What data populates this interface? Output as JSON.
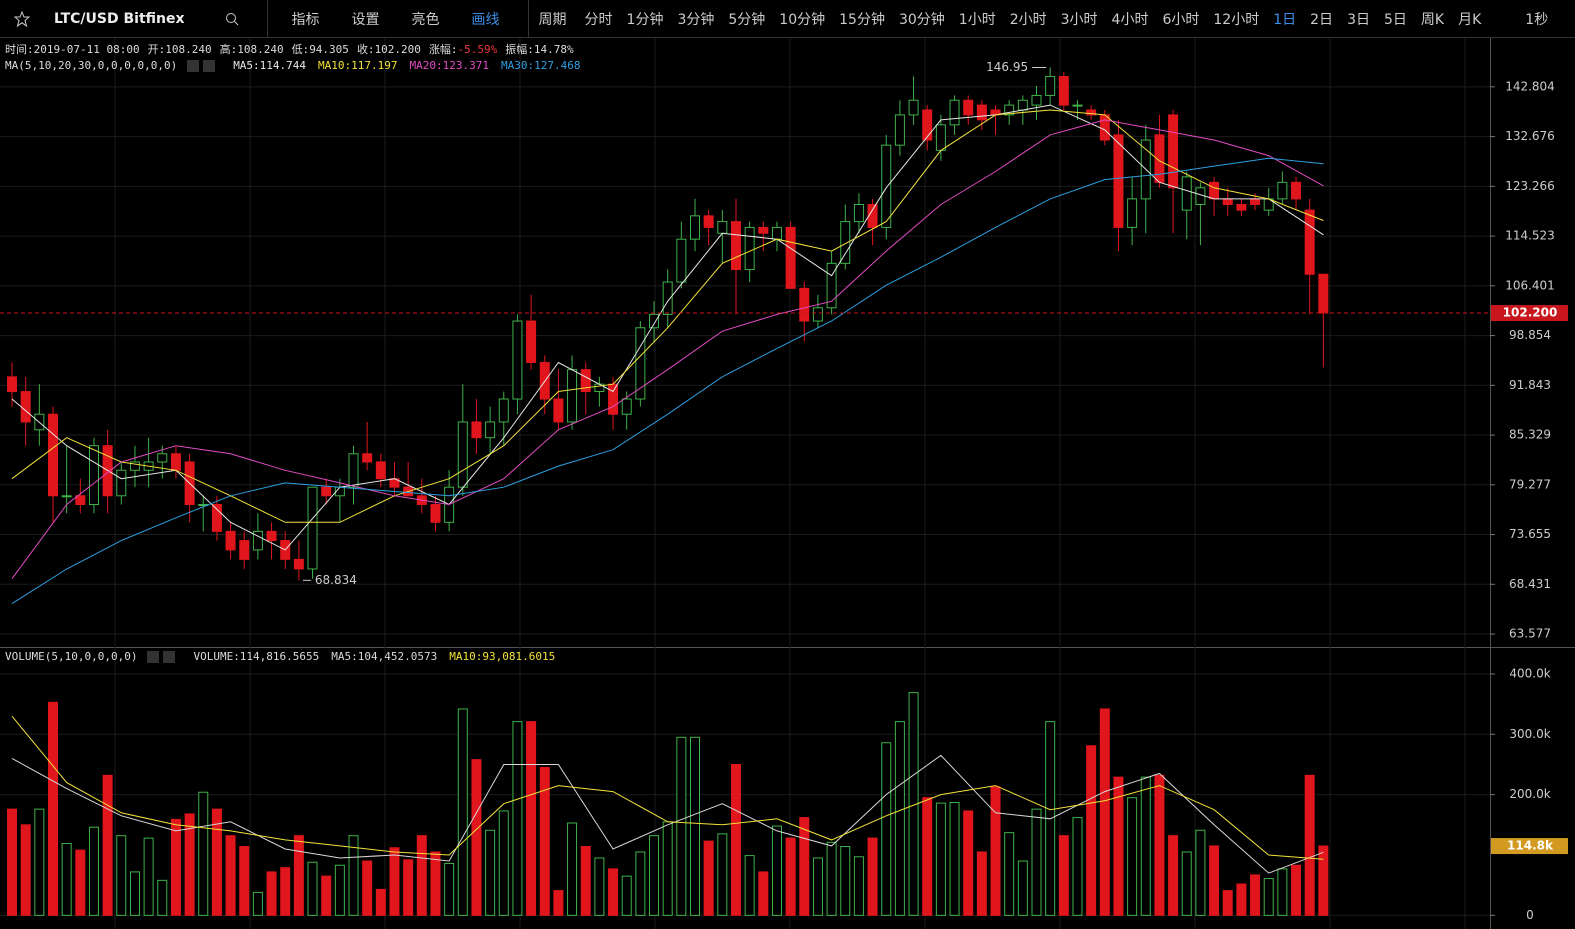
{
  "toolbar": {
    "symbol": "LTC/USD Bitfinex",
    "tools": [
      "指标",
      "设置",
      "亮色",
      "画线"
    ],
    "period_label": "周期",
    "periods": [
      "分时",
      "1分钟",
      "3分钟",
      "5分钟",
      "10分钟",
      "15分钟",
      "30分钟",
      "1小时",
      "2小时",
      "3小时",
      "4小时",
      "6小时",
      "12小时",
      "1日",
      "2日",
      "3日",
      "5日",
      "周K",
      "月K"
    ],
    "active_period": "1日",
    "interval": "1秒"
  },
  "info": [
    {
      "label": "时间:",
      "value": "2019-07-11 08:00"
    },
    {
      "label": "开:",
      "value": "108.240"
    },
    {
      "label": "高:",
      "value": "108.240"
    },
    {
      "label": "低:",
      "value": "94.305"
    },
    {
      "label": "收:",
      "value": "102.200"
    },
    {
      "label": "涨幅:",
      "value": "-5.59%",
      "color": "#e8383d"
    },
    {
      "label": "振幅:",
      "value": "14.78%"
    }
  ],
  "chart_data": [
    {
      "type": "candlestick",
      "indicator": "MA(5,10,20,30,0,0,0,0,0,0)",
      "log_scale": true,
      "up_color": "#3fb24a",
      "down_color": "#e0161c",
      "xlim": [
        -0.88,
        108.2
      ],
      "ylim": [
        62.37,
        153.5
      ],
      "yticks": [
        63.577,
        68.431,
        73.655,
        79.277,
        85.329,
        91.843,
        98.854,
        106.401,
        114.523,
        123.266,
        132.676,
        142.804
      ],
      "grid": true,
      "open": [
        93,
        91,
        86,
        88,
        78,
        78,
        77,
        84,
        78,
        81,
        81,
        82,
        83,
        82,
        77,
        77,
        74,
        73,
        72,
        74,
        73,
        71,
        70,
        79,
        78,
        79,
        83,
        82,
        80,
        79,
        78,
        77,
        75,
        79,
        87,
        85,
        87,
        90,
        101,
        95,
        90,
        87,
        94,
        91,
        92,
        88,
        90,
        100,
        102,
        107,
        114,
        118,
        115,
        117,
        109,
        116,
        114,
        116,
        106,
        101,
        103,
        110,
        117,
        120,
        116,
        131,
        137,
        138,
        130,
        135,
        140,
        139,
        138,
        137,
        138,
        139,
        141,
        145,
        139,
        138,
        137,
        133,
        116,
        121,
        133,
        137,
        119,
        120,
        124,
        121,
        120,
        121,
        119,
        121,
        124,
        119,
        108.24
      ],
      "high": [
        95,
        93,
        92,
        89,
        84,
        80,
        85,
        86,
        82,
        84,
        85,
        84,
        84,
        83,
        78,
        78,
        75,
        74,
        76,
        75,
        74,
        73,
        79,
        80,
        80,
        84,
        87,
        83,
        82,
        82,
        80,
        78,
        81,
        92,
        90,
        89,
        91,
        102,
        105,
        96,
        94,
        96,
        95,
        93,
        93,
        91,
        101,
        104,
        109,
        117,
        121,
        119,
        119,
        121,
        117,
        117,
        117,
        117,
        107,
        105,
        112,
        120,
        122,
        121,
        133,
        140,
        145,
        139,
        137,
        141,
        141,
        140,
        139,
        140,
        141,
        143,
        146.95,
        146,
        140,
        139,
        138,
        136,
        125,
        135,
        137,
        138,
        126,
        124,
        125,
        123,
        121,
        122,
        123,
        126,
        125,
        121,
        108.24
      ],
      "low": [
        89,
        84,
        84,
        75,
        76,
        76,
        76,
        76,
        77,
        79,
        79,
        80,
        80,
        75,
        74,
        73,
        71,
        70,
        71,
        71,
        70,
        68.834,
        69,
        77,
        75,
        77,
        81,
        79,
        78,
        78,
        76,
        74,
        74,
        78,
        83,
        83,
        84,
        88,
        94,
        88,
        86,
        86,
        88,
        89,
        86,
        86,
        89,
        98,
        100,
        106,
        112,
        113,
        110,
        102,
        107,
        112,
        112,
        106,
        98,
        100,
        102,
        109,
        115,
        113,
        114,
        129,
        135,
        130,
        128,
        133,
        135,
        134,
        133,
        135,
        135,
        136,
        139,
        138,
        136,
        136,
        131,
        112,
        113,
        115,
        123,
        115,
        114,
        113,
        118,
        118,
        118,
        119,
        118,
        120,
        119,
        102,
        94.305
      ],
      "close": [
        91,
        87,
        88,
        78,
        78,
        77,
        84,
        78,
        81,
        82,
        82,
        83,
        81,
        77,
        77,
        74,
        72,
        71,
        74,
        73,
        71,
        70,
        79,
        78,
        79,
        83,
        82,
        80,
        79,
        78,
        77,
        75,
        79,
        87,
        85,
        87,
        90,
        101,
        95,
        90,
        87,
        94,
        91,
        92,
        88,
        90,
        100,
        102,
        107,
        114,
        118,
        116,
        117,
        109,
        116,
        115,
        116,
        106,
        101,
        103,
        110,
        117,
        120,
        116,
        131,
        137,
        140,
        132,
        135,
        140,
        137,
        136,
        137,
        139,
        140,
        141,
        145,
        139,
        139,
        137,
        132,
        116,
        121,
        132,
        124,
        123,
        125,
        123,
        121,
        120,
        119,
        120,
        121,
        124,
        121,
        108.24,
        102.2
      ],
      "series": [
        {
          "name": "MA5",
          "label": "MA5:114.744",
          "color": "#e8e8e8",
          "x": [
            0,
            4,
            8,
            12,
            16,
            20,
            24,
            28,
            32,
            36,
            40,
            44,
            48,
            52,
            56,
            60,
            64,
            68,
            72,
            76,
            80,
            84,
            88,
            92,
            96
          ],
          "values": [
            90,
            84,
            80,
            81,
            75,
            72,
            79,
            80,
            77,
            85,
            95,
            91,
            104,
            115,
            114,
            108,
            123,
            136,
            137,
            139,
            134,
            124,
            121,
            121,
            114.744
          ]
        },
        {
          "name": "MA10",
          "label": "MA10:117.197",
          "color": "#f2e33a",
          "x": [
            0,
            4,
            8,
            12,
            16,
            20,
            24,
            28,
            32,
            36,
            40,
            44,
            48,
            52,
            56,
            60,
            64,
            68,
            72,
            76,
            80,
            84,
            88,
            92,
            96
          ],
          "values": [
            80,
            85,
            82,
            81,
            78,
            75,
            75,
            78,
            80,
            84,
            91,
            92,
            100,
            110,
            114,
            112,
            117,
            130,
            137,
            138,
            137,
            128,
            123,
            121,
            117.197
          ]
        },
        {
          "name": "MA20",
          "label": "MA20:123.371",
          "color": "#e04cc4",
          "x": [
            0,
            4,
            8,
            12,
            16,
            20,
            24,
            28,
            32,
            36,
            40,
            44,
            48,
            52,
            56,
            60,
            64,
            68,
            72,
            76,
            80,
            84,
            88,
            92,
            96
          ],
          "values": [
            69,
            77,
            82,
            84,
            83,
            81,
            79.5,
            78,
            77,
            80,
            86,
            89,
            94,
            99.5,
            102,
            104,
            112,
            120,
            126,
            133,
            136,
            134,
            132,
            129,
            123.371
          ]
        },
        {
          "name": "MA30",
          "label": "MA30:127.468",
          "color": "#2e9fe0",
          "x": [
            0,
            4,
            8,
            12,
            16,
            20,
            24,
            28,
            32,
            36,
            40,
            44,
            48,
            52,
            56,
            60,
            64,
            68,
            72,
            76,
            80,
            84,
            88,
            92,
            96
          ],
          "values": [
            66.5,
            70,
            73,
            75.5,
            78,
            79.5,
            79,
            78.5,
            78,
            79,
            81.5,
            83.5,
            88,
            93,
            97,
            101,
            106.5,
            111,
            116,
            121,
            124.5,
            125.5,
            127,
            128.5,
            127.468
          ]
        }
      ],
      "current": {
        "value": 102.2,
        "label": "102.200",
        "color": "#c8161c"
      },
      "annotations": [
        {
          "x": 76,
          "value": 146.95
        },
        {
          "x": 21,
          "value": 68.834
        }
      ]
    },
    {
      "type": "bar",
      "indicator": "VOLUME(5,10,0,0,0,0)",
      "label": "VOLUME:114,816.5655",
      "up_color": "#3fb24a",
      "down_color": "#e0161c",
      "xlim": [
        -0.88,
        108.2
      ],
      "ylim": [
        -16000,
        443000
      ],
      "yticks": [
        0,
        {
          "value": 200000,
          "label": "200.0k"
        },
        {
          "value": 300000,
          "label": "300.0k"
        },
        {
          "value": 400000,
          "label": "400.0k"
        }
      ],
      "values": [
        176000,
        150000,
        176000,
        353000,
        119000,
        108000,
        146000,
        232000,
        132000,
        72000,
        128000,
        58000,
        159000,
        168000,
        204000,
        176000,
        132000,
        114000,
        38000,
        72000,
        79000,
        132000,
        88000,
        65000,
        83000,
        132000,
        90000,
        43000,
        112000,
        92000,
        132000,
        105000,
        86000,
        342000,
        258000,
        141000,
        173000,
        321000,
        321000,
        245000,
        41000,
        153000,
        114000,
        95000,
        77000,
        65000,
        105000,
        132000,
        155000,
        295000,
        295000,
        123000,
        135000,
        250000,
        99000,
        72000,
        148000,
        128000,
        162000,
        95000,
        121000,
        114000,
        97000,
        128000,
        286000,
        321000,
        369000,
        195000,
        186000,
        187000,
        173000,
        105000,
        213000,
        137000,
        90000,
        176000,
        321000,
        132000,
        162000,
        281000,
        342000,
        229000,
        195000,
        229000,
        232000,
        132000,
        105000,
        141000,
        115000,
        41000,
        52000,
        67000,
        61000,
        77000,
        83000,
        232000,
        114816.5655
      ],
      "series": [
        {
          "name": "MA5",
          "label": "MA5:104,452.0573",
          "color": "#d8d8d8",
          "x": [
            0,
            4,
            8,
            12,
            16,
            20,
            24,
            28,
            32,
            36,
            40,
            44,
            48,
            52,
            56,
            60,
            64,
            68,
            72,
            76,
            80,
            84,
            88,
            92,
            96
          ],
          "values": [
            260000,
            210000,
            165000,
            140000,
            155000,
            110000,
            95000,
            100000,
            90000,
            250000,
            250000,
            110000,
            150000,
            185000,
            140000,
            115000,
            200000,
            265000,
            170000,
            160000,
            205000,
            235000,
            150000,
            70000,
            104452.0573
          ]
        },
        {
          "name": "MA10",
          "label": "MA10:93,081.6015",
          "color": "#f2e33a",
          "x": [
            0,
            4,
            8,
            12,
            16,
            20,
            24,
            28,
            32,
            36,
            40,
            44,
            48,
            52,
            56,
            60,
            64,
            68,
            72,
            76,
            80,
            84,
            88,
            92,
            96
          ],
          "values": [
            330000,
            220000,
            170000,
            150000,
            140000,
            125000,
            115000,
            105000,
            100000,
            185000,
            215000,
            205000,
            155000,
            150000,
            160000,
            125000,
            165000,
            200000,
            215000,
            175000,
            190000,
            215000,
            175000,
            100000,
            93081.6015
          ]
        }
      ],
      "current": {
        "value": 114816.5655,
        "label": "114.8k",
        "color": "#d39a22"
      }
    }
  ]
}
